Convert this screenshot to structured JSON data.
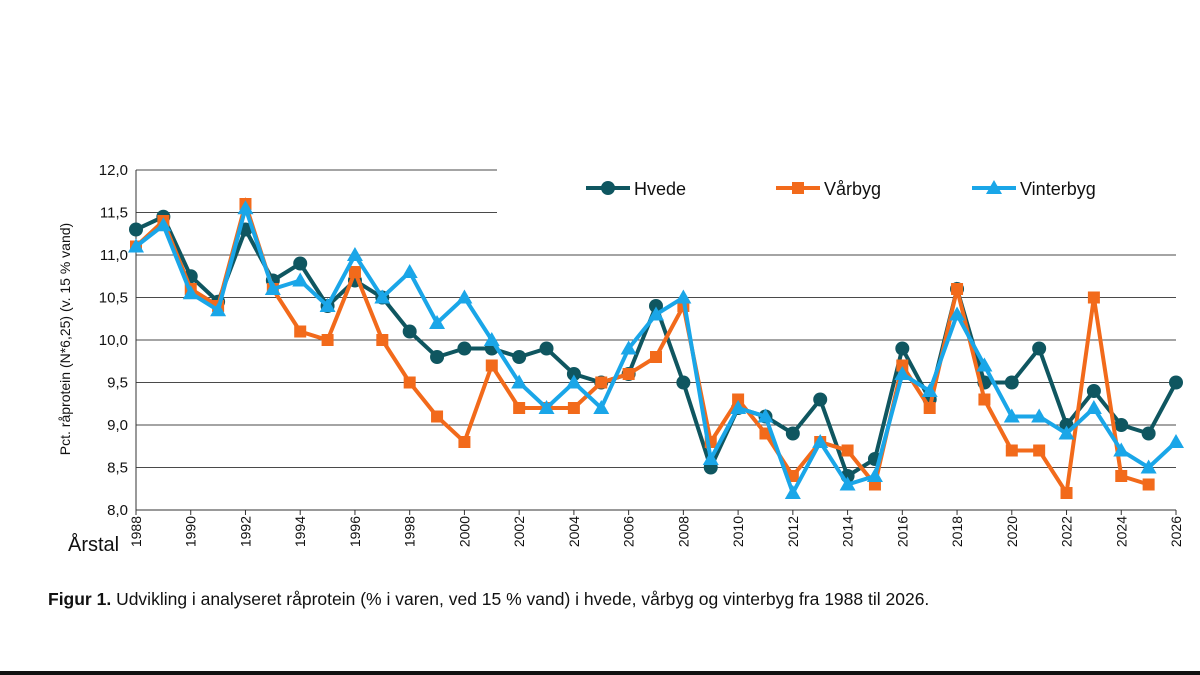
{
  "chart_data": {
    "type": "line",
    "ylabel": "Pct. råprotein (N*6,25)  (v. 15 % vand)",
    "xlabel": "Årstal",
    "ylim": [
      8.0,
      12.0
    ],
    "xlim": [
      1988,
      2026
    ],
    "yticks": [
      "8,0",
      "8,5",
      "9,0",
      "9,5",
      "10,0",
      "10,5",
      "11,0",
      "11,5",
      "12,0"
    ],
    "xticks": [
      "1988",
      "1990",
      "1992",
      "1994",
      "1996",
      "1998",
      "2000",
      "2002",
      "2004",
      "2006",
      "2008",
      "2010",
      "2012",
      "2014",
      "2016",
      "2018",
      "2020",
      "2022",
      "2024",
      "2026"
    ],
    "grid": "horizontal",
    "legend_position": "top",
    "series": [
      {
        "name": "Hvede",
        "color": "#0f5660",
        "marker": "circle",
        "x": [
          1988,
          1989,
          1990,
          1991,
          1992,
          1993,
          1994,
          1995,
          1996,
          1997,
          1998,
          1999,
          2000,
          2001,
          2002,
          2003,
          2004,
          2005,
          2006,
          2007,
          2008,
          2009,
          2010,
          2011,
          2012,
          2013,
          2014,
          2015,
          2016,
          2017,
          2018,
          2019,
          2020,
          2021,
          2022,
          2023,
          2024,
          2025,
          2026
        ],
        "values": [
          11.3,
          11.45,
          10.75,
          10.45,
          11.3,
          10.7,
          10.9,
          10.4,
          10.7,
          10.5,
          10.1,
          9.8,
          9.9,
          9.9,
          9.8,
          9.9,
          9.6,
          9.5,
          9.6,
          10.4,
          9.5,
          8.5,
          9.2,
          9.1,
          8.9,
          9.3,
          8.4,
          8.6,
          9.9,
          9.3,
          10.6,
          9.5,
          9.5,
          9.9,
          9.0,
          9.4,
          9.0,
          8.9,
          9.5
        ]
      },
      {
        "name": "Vårbyg",
        "color": "#f26a1b",
        "marker": "square",
        "x": [
          1988,
          1989,
          1990,
          1991,
          1992,
          1993,
          1994,
          1995,
          1996,
          1997,
          1998,
          1999,
          2000,
          2001,
          2002,
          2003,
          2004,
          2005,
          2006,
          2007,
          2008,
          2009,
          2010,
          2011,
          2012,
          2013,
          2014,
          2015,
          2016,
          2017,
          2018,
          2019,
          2020,
          2021,
          2022,
          2023,
          2024,
          2025
        ],
        "values": [
          11.1,
          11.4,
          10.6,
          10.4,
          11.6,
          10.6,
          10.1,
          10.0,
          10.8,
          10.0,
          9.5,
          9.1,
          8.8,
          9.7,
          9.2,
          9.2,
          9.2,
          9.5,
          9.6,
          9.8,
          10.4,
          8.8,
          9.3,
          8.9,
          8.4,
          8.8,
          8.7,
          8.3,
          9.7,
          9.2,
          10.6,
          9.3,
          8.7,
          8.7,
          8.2,
          10.5,
          8.4,
          8.3
        ]
      },
      {
        "name": "Vinterbyg",
        "color": "#1aa6e8",
        "marker": "triangle",
        "x": [
          1988,
          1989,
          1990,
          1991,
          1992,
          1993,
          1994,
          1995,
          1996,
          1997,
          1998,
          1999,
          2000,
          2001,
          2002,
          2003,
          2004,
          2005,
          2006,
          2007,
          2008,
          2009,
          2010,
          2011,
          2012,
          2013,
          2014,
          2015,
          2016,
          2017,
          2018,
          2019,
          2020,
          2021,
          2022,
          2023,
          2024,
          2025,
          2026
        ],
        "values": [
          11.1,
          11.35,
          10.55,
          10.35,
          11.55,
          10.6,
          10.7,
          10.4,
          11.0,
          10.5,
          10.8,
          10.2,
          10.5,
          10.0,
          9.5,
          9.2,
          9.5,
          9.2,
          9.9,
          10.3,
          10.5,
          8.6,
          9.2,
          9.1,
          8.2,
          8.8,
          8.3,
          8.4,
          9.6,
          9.4,
          10.3,
          9.7,
          9.1,
          9.1,
          8.9,
          9.2,
          8.7,
          8.5,
          8.8
        ]
      }
    ]
  },
  "caption": {
    "label": "Figur 1.",
    "text": " Udvikling i analyseret råprotein (% i varen, ved 15 % vand) i hvede, vårbyg og vinterbyg fra 1988 til 2026."
  }
}
